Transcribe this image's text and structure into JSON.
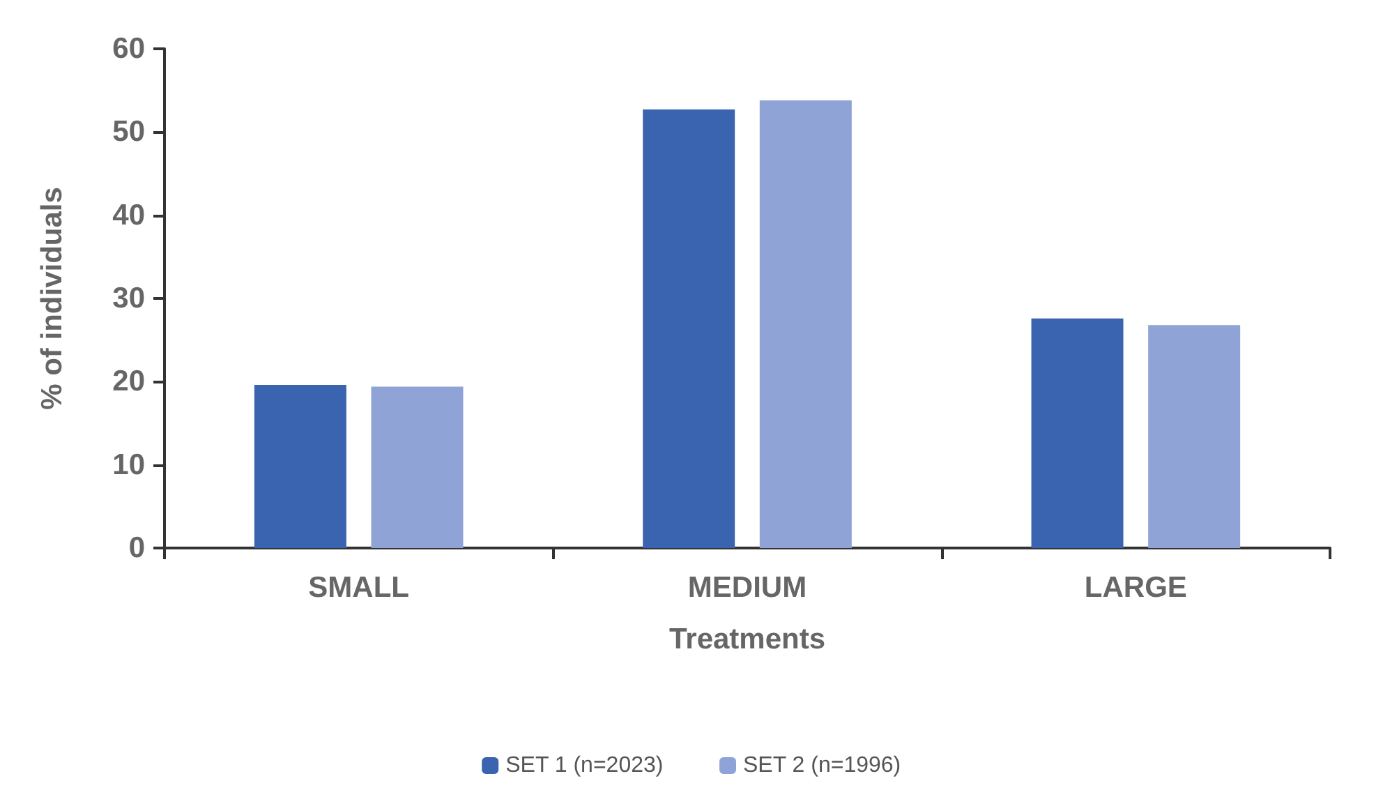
{
  "chart_data": {
    "type": "bar",
    "xlabel": "Treatments",
    "ylabel": "% of individuals",
    "categories": [
      "SMALL",
      "MEDIUM",
      "LARGE"
    ],
    "series": [
      {
        "name": "SET 1 (n=2023)",
        "color": "#3a64af",
        "values": [
          19.6,
          52.7,
          27.6
        ]
      },
      {
        "name": "SET 2 (n=1996)",
        "color": "#8fa3d6",
        "values": [
          19.4,
          53.8,
          26.8
        ]
      }
    ],
    "ylim": [
      0,
      60
    ],
    "yticks": [
      0,
      10,
      20,
      30,
      40,
      50,
      60
    ],
    "grid": false,
    "legend": "bottom"
  }
}
